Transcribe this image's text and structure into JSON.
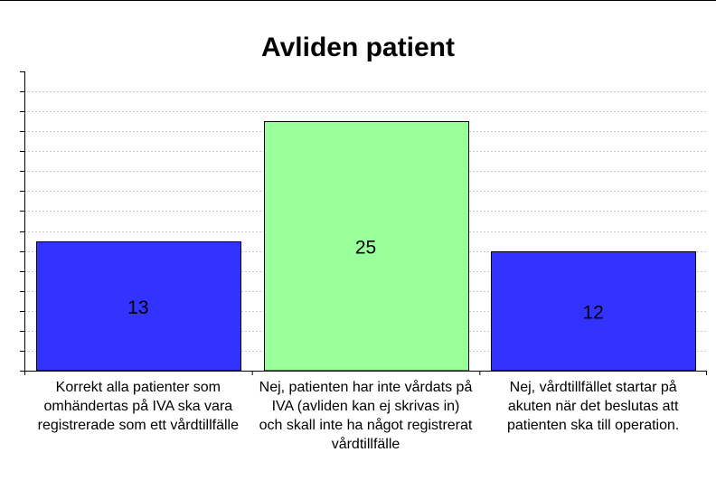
{
  "chart_data": {
    "type": "bar",
    "title": "Avliden patient",
    "categories": [
      "Korrekt alla patienter som omhändertas på IVA ska vara registrerade som ett vårdtillfälle",
      "Nej, patienten har inte vårdats på IVA (avliden kan ej skrivas in) och skall inte ha något registrerat vårdtillfälle",
      "Nej, vårdtillfället startar på akuten när det beslutas att patienten ska till operation."
    ],
    "values": [
      13,
      25,
      12
    ],
    "data_labels": [
      "13",
      "25",
      "12"
    ],
    "colors": [
      "#3333ff",
      "#99ff99",
      "#3333ff"
    ],
    "ylim": [
      0,
      30
    ],
    "grid": true
  }
}
